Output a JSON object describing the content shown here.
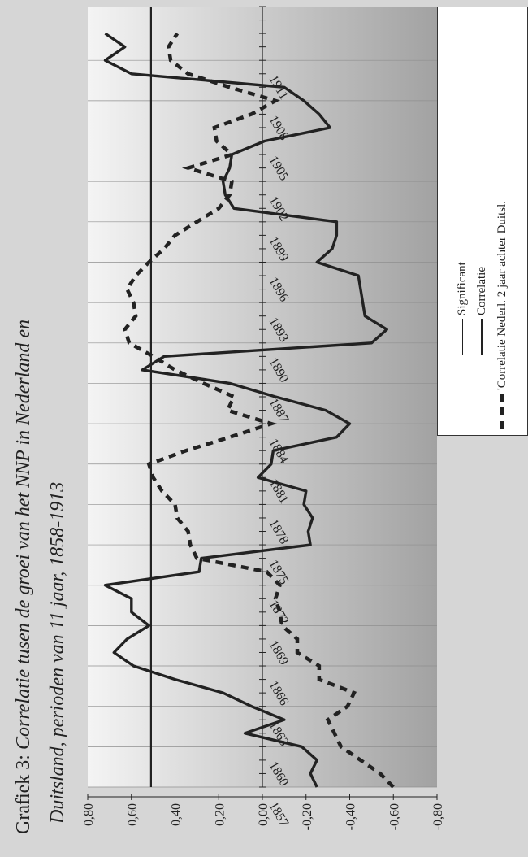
{
  "title": {
    "prefix": "Grafiek 3: ",
    "line1": "Correlatie tusen de groei van het NNP in Nederland en",
    "line2": "Duitsland, perioden van 11 jaar, 1858-1913"
  },
  "colors": {
    "frame_bg": "#d6d6d6",
    "plot_bg_light": "#f4f4f4",
    "plot_bg_dark": "#a2a2a2",
    "ink": "#222222"
  },
  "legend": {
    "items": [
      {
        "label": "Significant",
        "style": "thin"
      },
      {
        "label": "Correlatie",
        "style": "thick"
      },
      {
        "label": "'Correlatie  Nederl. 2 jaar  achter Duitsl.",
        "style": "dashed"
      }
    ]
  },
  "chart_data": {
    "type": "line",
    "orientation": "rotated-90-ccw",
    "value_axis": {
      "min": -0.8,
      "max": 0.8,
      "ticks": [
        0.8,
        0.6,
        0.4,
        0.2,
        0.0,
        -0.2,
        -0.4,
        -0.6,
        -0.8
      ],
      "tick_labels": [
        "0,80",
        "0,60",
        "0,40",
        "0,20",
        "0,00",
        "-0,20",
        "-0,40",
        "-0,60",
        "-0,80"
      ]
    },
    "year_axis": {
      "min": 1857,
      "max": 1915,
      "tick_labels": [
        "1857",
        "1860",
        "1863",
        "1866",
        "1869",
        "1872",
        "1875",
        "1878",
        "1881",
        "1884",
        "1887",
        "1890",
        "1893",
        "1896",
        "1899",
        "1902",
        "1905",
        "1908",
        "1911"
      ]
    },
    "series": [
      {
        "name": "Significant",
        "style": "thin",
        "points": [
          [
            1857,
            0.51
          ],
          [
            1915,
            0.51
          ]
        ]
      },
      {
        "name": "Correlatie",
        "style": "thick",
        "points": [
          [
            1857,
            -0.25
          ],
          [
            1858,
            -0.22
          ],
          [
            1859,
            -0.25
          ],
          [
            1860,
            -0.18
          ],
          [
            1861,
            0.08
          ],
          [
            1862,
            -0.1
          ],
          [
            1863,
            0.05
          ],
          [
            1864,
            0.18
          ],
          [
            1865,
            0.4
          ],
          [
            1866,
            0.59
          ],
          [
            1867,
            0.68
          ],
          [
            1868,
            0.62
          ],
          [
            1869,
            0.52
          ],
          [
            1870,
            0.6
          ],
          [
            1871,
            0.6
          ],
          [
            1872,
            0.72
          ],
          [
            1873,
            0.29
          ],
          [
            1874,
            0.28
          ],
          [
            1875,
            -0.22
          ],
          [
            1876,
            -0.21
          ],
          [
            1877,
            -0.23
          ],
          [
            1878,
            -0.19
          ],
          [
            1879,
            -0.2
          ],
          [
            1880,
            0.02
          ],
          [
            1881,
            -0.04
          ],
          [
            1882,
            -0.05
          ],
          [
            1883,
            -0.34
          ],
          [
            1884,
            -0.4
          ],
          [
            1885,
            -0.29
          ],
          [
            1886,
            -0.06
          ],
          [
            1887,
            0.15
          ],
          [
            1888,
            0.55
          ],
          [
            1889,
            0.45
          ],
          [
            1890,
            -0.5
          ],
          [
            1891,
            -0.57
          ],
          [
            1892,
            -0.47
          ],
          [
            1893,
            -0.46
          ],
          [
            1894,
            -0.45
          ],
          [
            1895,
            -0.44
          ],
          [
            1896,
            -0.25
          ],
          [
            1897,
            -0.32
          ],
          [
            1898,
            -0.34
          ],
          [
            1899,
            -0.34
          ],
          [
            1900,
            0.13
          ],
          [
            1901,
            0.17
          ],
          [
            1902,
            0.18
          ],
          [
            1903,
            0.15
          ],
          [
            1904,
            0.14
          ],
          [
            1905,
            -0.01
          ],
          [
            1906,
            -0.31
          ],
          [
            1907,
            -0.26
          ],
          [
            1908,
            -0.19
          ],
          [
            1909,
            -0.1
          ],
          [
            1910,
            0.6
          ],
          [
            1911,
            0.72
          ],
          [
            1912,
            0.63
          ],
          [
            1913,
            0.72
          ]
        ]
      },
      {
        "name": "'Correlatie  Nederl. 2 jaar  achter Duitsl.",
        "style": "dashed",
        "points": [
          [
            1857,
            -0.6
          ],
          [
            1858,
            -0.54
          ],
          [
            1859,
            -0.45
          ],
          [
            1860,
            -0.36
          ],
          [
            1861,
            -0.33
          ],
          [
            1862,
            -0.3
          ],
          [
            1863,
            -0.39
          ],
          [
            1864,
            -0.42
          ],
          [
            1865,
            -0.26
          ],
          [
            1866,
            -0.26
          ],
          [
            1867,
            -0.16
          ],
          [
            1868,
            -0.16
          ],
          [
            1869,
            -0.09
          ],
          [
            1870,
            -0.08
          ],
          [
            1871,
            -0.06
          ],
          [
            1872,
            -0.08
          ],
          [
            1873,
            -0.02
          ],
          [
            1874,
            0.3
          ],
          [
            1875,
            0.33
          ],
          [
            1876,
            0.34
          ],
          [
            1877,
            0.39
          ],
          [
            1878,
            0.4
          ],
          [
            1879,
            0.46
          ],
          [
            1880,
            0.5
          ],
          [
            1881,
            0.52
          ],
          [
            1882,
            0.35
          ],
          [
            1883,
            0.15
          ],
          [
            1884,
            -0.04
          ],
          [
            1885,
            0.16
          ],
          [
            1886,
            0.13
          ],
          [
            1887,
            0.27
          ],
          [
            1888,
            0.4
          ],
          [
            1889,
            0.5
          ],
          [
            1890,
            0.61
          ],
          [
            1891,
            0.63
          ],
          [
            1892,
            0.58
          ],
          [
            1893,
            0.59
          ],
          [
            1894,
            0.62
          ],
          [
            1895,
            0.58
          ],
          [
            1896,
            0.52
          ],
          [
            1897,
            0.45
          ],
          [
            1898,
            0.4
          ],
          [
            1899,
            0.3
          ],
          [
            1900,
            0.2
          ],
          [
            1901,
            0.15
          ],
          [
            1902,
            0.14
          ],
          [
            1903,
            0.34
          ],
          [
            1904,
            0.14
          ],
          [
            1905,
            0.21
          ],
          [
            1906,
            0.22
          ],
          [
            1907,
            0.05
          ],
          [
            1908,
            -0.06
          ],
          [
            1909,
            0.15
          ],
          [
            1910,
            0.34
          ],
          [
            1911,
            0.42
          ],
          [
            1912,
            0.43
          ],
          [
            1913,
            0.39
          ]
        ]
      }
    ]
  }
}
